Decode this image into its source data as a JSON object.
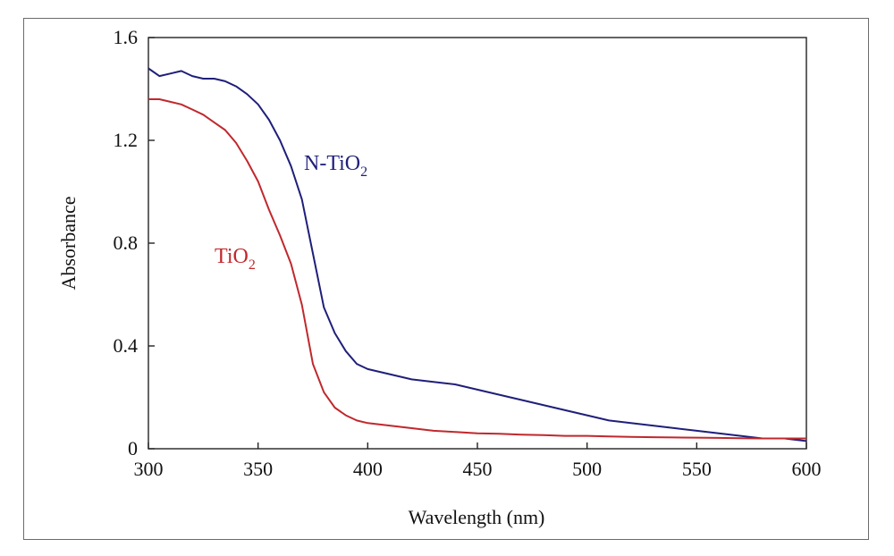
{
  "chart_data": {
    "type": "line",
    "xlabel": "Wavelength (nm)",
    "ylabel": "Absorbance",
    "xlim": [
      300,
      600
    ],
    "ylim": [
      0,
      1.6
    ],
    "xticks": [
      300,
      350,
      400,
      450,
      500,
      550,
      600
    ],
    "xtick_labels": [
      "300",
      "350",
      "400",
      "450",
      "500",
      "550",
      "600"
    ],
    "yticks": [
      0,
      0.4,
      0.8,
      1.2,
      1.6
    ],
    "ytick_labels": [
      "0",
      "0.4",
      "0.8",
      "1.2",
      "1.6"
    ],
    "grid": false,
    "series": [
      {
        "name": "N-TiO2",
        "label_base": "N-TiO",
        "label_sub": "2",
        "color": "#1f1f7a",
        "x": [
          300,
          305,
          310,
          315,
          320,
          325,
          330,
          335,
          340,
          345,
          350,
          355,
          360,
          365,
          370,
          375,
          380,
          385,
          390,
          395,
          400,
          410,
          420,
          430,
          440,
          450,
          460,
          470,
          480,
          490,
          500,
          510,
          520,
          530,
          540,
          550,
          560,
          570,
          580,
          590,
          600
        ],
        "y": [
          1.48,
          1.45,
          1.46,
          1.47,
          1.45,
          1.44,
          1.44,
          1.43,
          1.41,
          1.38,
          1.34,
          1.28,
          1.2,
          1.1,
          0.97,
          0.76,
          0.55,
          0.45,
          0.38,
          0.33,
          0.31,
          0.29,
          0.27,
          0.26,
          0.25,
          0.23,
          0.21,
          0.19,
          0.17,
          0.15,
          0.13,
          0.11,
          0.1,
          0.09,
          0.08,
          0.07,
          0.06,
          0.05,
          0.04,
          0.04,
          0.03
        ]
      },
      {
        "name": "TiO2",
        "label_base": "TiO",
        "label_sub": "2",
        "color": "#c0282d",
        "x": [
          300,
          305,
          310,
          315,
          320,
          325,
          330,
          335,
          340,
          345,
          350,
          355,
          360,
          365,
          370,
          375,
          380,
          385,
          390,
          395,
          400,
          410,
          420,
          430,
          440,
          450,
          460,
          470,
          480,
          490,
          500,
          510,
          520,
          530,
          540,
          550,
          560,
          570,
          580,
          590,
          600
        ],
        "y": [
          1.36,
          1.36,
          1.35,
          1.34,
          1.32,
          1.3,
          1.27,
          1.24,
          1.19,
          1.12,
          1.04,
          0.93,
          0.83,
          0.72,
          0.56,
          0.33,
          0.22,
          0.16,
          0.13,
          0.11,
          0.1,
          0.09,
          0.08,
          0.07,
          0.065,
          0.06,
          0.058,
          0.055,
          0.053,
          0.05,
          0.05,
          0.048,
          0.046,
          0.045,
          0.044,
          0.043,
          0.042,
          0.041,
          0.04,
          0.04,
          0.04
        ]
      }
    ]
  }
}
